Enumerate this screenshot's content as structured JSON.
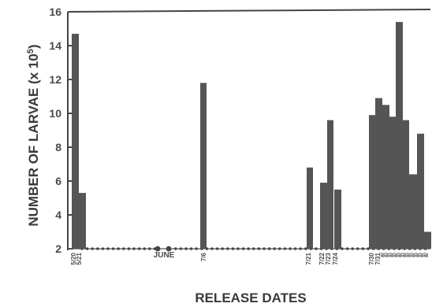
{
  "chart_data": {
    "type": "bar",
    "xlabel": "RELEASE DATES",
    "ylabel": "NUMBER OF LARVAE (x 10",
    "ylabel_superscript": "5",
    "ylabel_close": ")",
    "ylim": [
      2,
      16
    ],
    "yticks": [
      2,
      4,
      6,
      8,
      10,
      12,
      14,
      16
    ],
    "grid": false,
    "legend": "none",
    "bar_color": "#555555",
    "month_label": "JUNE",
    "x_tick_labels": [
      "5/20",
      "5/21",
      "7/6",
      "7/21",
      "7/22",
      "7/23",
      "7/24",
      "7/30",
      "7/31"
    ],
    "values": [
      14.7,
      5.3,
      11.8,
      6.8,
      5.9,
      9.6,
      5.5,
      9.9,
      10.9,
      10.5,
      9.8,
      15.4,
      9.6,
      6.4,
      8.8,
      3.0
    ]
  }
}
